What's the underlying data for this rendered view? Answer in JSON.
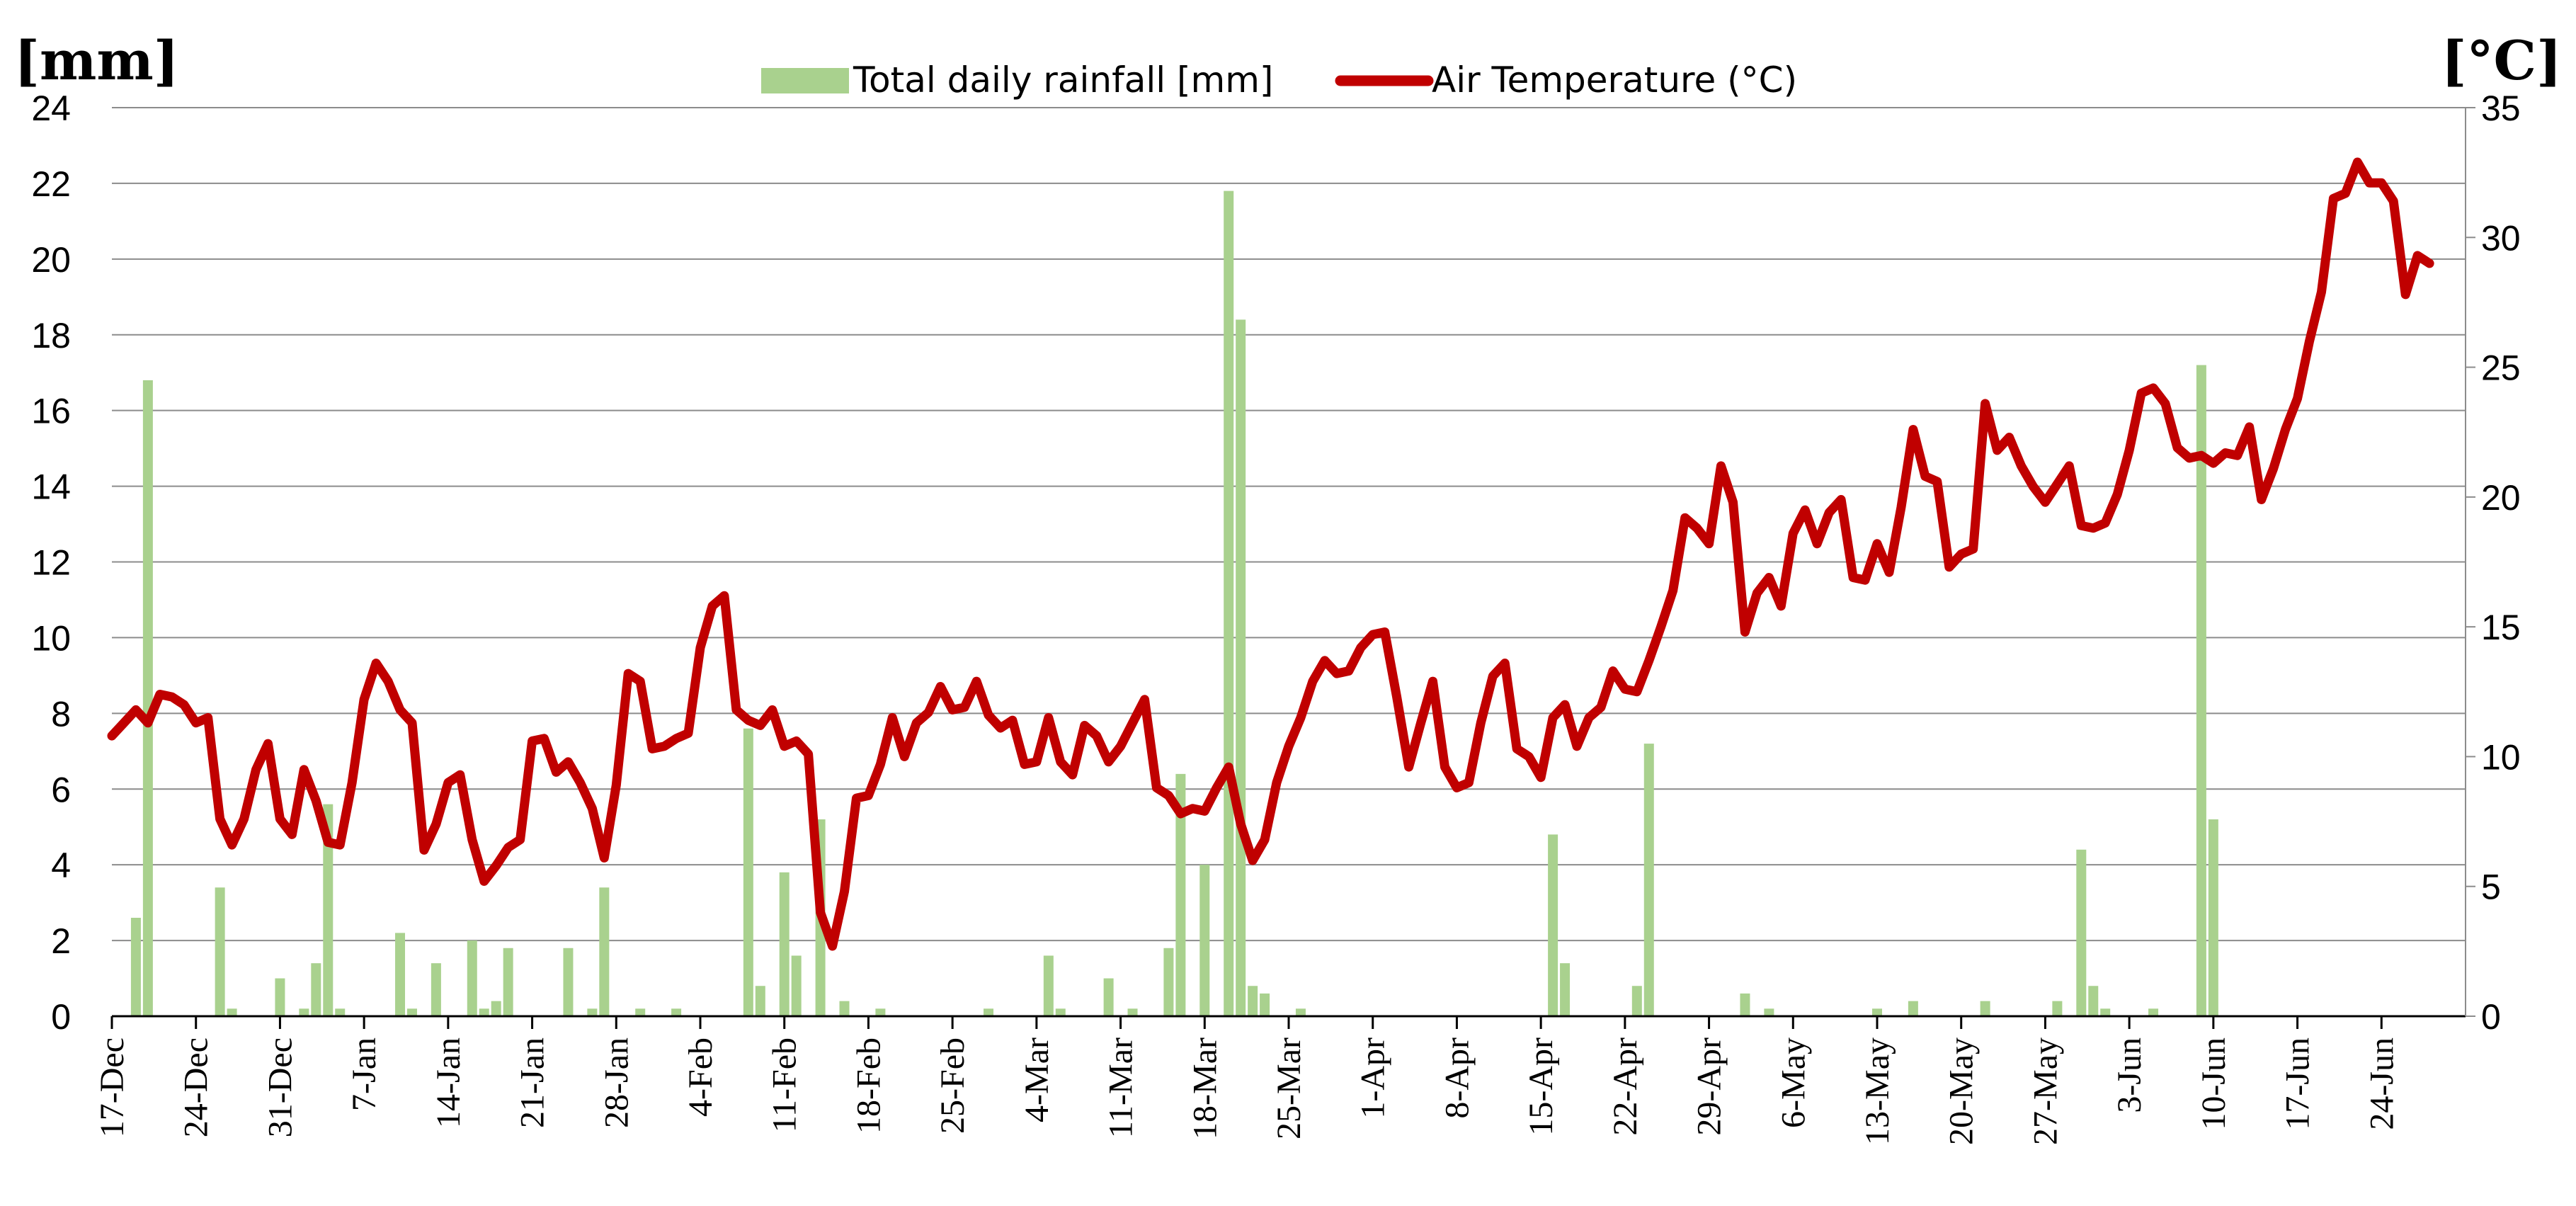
{
  "chart_data": {
    "type": "bar+line",
    "title": "",
    "left_axis": {
      "label": "[mm]",
      "min": 0,
      "max": 24,
      "ticks": [
        0,
        2,
        4,
        6,
        8,
        10,
        12,
        14,
        16,
        18,
        20,
        22,
        24
      ]
    },
    "right_axis": {
      "label": "[°C]",
      "min": 0,
      "max": 35,
      "ticks": [
        0,
        5,
        10,
        15,
        20,
        25,
        30,
        35
      ]
    },
    "x_axis": {
      "days": 197,
      "tick_labels": [
        "17-Dec",
        "24-Dec",
        "31-Dec",
        "7-Jan",
        "14-Jan",
        "21-Jan",
        "28-Jan",
        "4-Feb",
        "11-Feb",
        "18-Feb",
        "25-Feb",
        "4-Mar",
        "11-Mar",
        "18-Mar",
        "25-Mar",
        "1-Apr",
        "8-Apr",
        "15-Apr",
        "22-Apr",
        "29-Apr",
        "6-May",
        "13-May",
        "20-May",
        "27-May",
        "3-Jun",
        "10-Jun",
        "17-Jun",
        "24-Jun"
      ]
    },
    "legend": {
      "position": "top-center"
    },
    "series": [
      {
        "name": "Total daily rainfall [mm]",
        "type": "bar",
        "axis": "left",
        "color": "#a9d18e",
        "points": [
          [
            2,
            2.6
          ],
          [
            3,
            16.8
          ],
          [
            9,
            3.4
          ],
          [
            10,
            0.2
          ],
          [
            14,
            1.0
          ],
          [
            16,
            0.2
          ],
          [
            17,
            1.4
          ],
          [
            18,
            5.6
          ],
          [
            19,
            0.2
          ],
          [
            24,
            2.2
          ],
          [
            25,
            0.2
          ],
          [
            27,
            1.4
          ],
          [
            30,
            2.0
          ],
          [
            31,
            0.2
          ],
          [
            32,
            0.4
          ],
          [
            33,
            1.8
          ],
          [
            38,
            1.8
          ],
          [
            40,
            0.2
          ],
          [
            41,
            3.4
          ],
          [
            44,
            0.2
          ],
          [
            47,
            0.2
          ],
          [
            53,
            7.6
          ],
          [
            54,
            0.8
          ],
          [
            56,
            3.8
          ],
          [
            57,
            1.6
          ],
          [
            59,
            5.2
          ],
          [
            61,
            0.4
          ],
          [
            64,
            0.2
          ],
          [
            73,
            0.2
          ],
          [
            78,
            1.6
          ],
          [
            79,
            0.2
          ],
          [
            83,
            1.0
          ],
          [
            85,
            0.2
          ],
          [
            88,
            1.8
          ],
          [
            89,
            6.4
          ],
          [
            91,
            4.0
          ],
          [
            93,
            21.8
          ],
          [
            94,
            18.4
          ],
          [
            95,
            0.8
          ],
          [
            96,
            0.6
          ],
          [
            99,
            0.2
          ],
          [
            120,
            4.8
          ],
          [
            121,
            1.4
          ],
          [
            127,
            0.8
          ],
          [
            128,
            7.2
          ],
          [
            136,
            0.6
          ],
          [
            138,
            0.2
          ],
          [
            147,
            0.2
          ],
          [
            150,
            0.4
          ],
          [
            156,
            0.4
          ],
          [
            162,
            0.4
          ],
          [
            164,
            4.4
          ],
          [
            165,
            0.8
          ],
          [
            166,
            0.2
          ],
          [
            170,
            0.2
          ],
          [
            174,
            17.2
          ],
          [
            175,
            5.2
          ]
        ]
      },
      {
        "name": "Air Temperature (°C)",
        "type": "line",
        "axis": "right",
        "color": "#c00000",
        "points": [
          [
            0,
            10.8
          ],
          [
            1,
            11.3
          ],
          [
            2,
            11.8
          ],
          [
            3,
            11.3
          ],
          [
            4,
            12.4
          ],
          [
            5,
            12.3
          ],
          [
            6,
            12.0
          ],
          [
            7,
            11.3
          ],
          [
            8,
            11.5
          ],
          [
            9,
            7.6
          ],
          [
            10,
            6.6
          ],
          [
            11,
            7.6
          ],
          [
            12,
            9.5
          ],
          [
            13,
            10.5
          ],
          [
            14,
            7.6
          ],
          [
            15,
            7.0
          ],
          [
            16,
            9.5
          ],
          [
            17,
            8.3
          ],
          [
            18,
            6.7
          ],
          [
            19,
            6.6
          ],
          [
            20,
            9.0
          ],
          [
            21,
            12.2
          ],
          [
            22,
            13.6
          ],
          [
            23,
            12.9
          ],
          [
            24,
            11.8
          ],
          [
            25,
            11.3
          ],
          [
            26,
            6.4
          ],
          [
            27,
            7.4
          ],
          [
            28,
            9.0
          ],
          [
            29,
            9.3
          ],
          [
            30,
            6.8
          ],
          [
            31,
            5.2
          ],
          [
            32,
            5.8
          ],
          [
            33,
            6.5
          ],
          [
            34,
            6.8
          ],
          [
            35,
            10.6
          ],
          [
            36,
            10.7
          ],
          [
            37,
            9.4
          ],
          [
            38,
            9.8
          ],
          [
            39,
            9.0
          ],
          [
            40,
            8.0
          ],
          [
            41,
            6.1
          ],
          [
            42,
            8.9
          ],
          [
            43,
            13.2
          ],
          [
            44,
            12.9
          ],
          [
            45,
            10.3
          ],
          [
            46,
            10.4
          ],
          [
            47,
            10.7
          ],
          [
            48,
            10.9
          ],
          [
            49,
            14.2
          ],
          [
            50,
            15.8
          ],
          [
            51,
            16.2
          ],
          [
            52,
            11.8
          ],
          [
            53,
            11.4
          ],
          [
            54,
            11.2
          ],
          [
            55,
            11.8
          ],
          [
            56,
            10.4
          ],
          [
            57,
            10.6
          ],
          [
            58,
            10.1
          ],
          [
            59,
            4.0
          ],
          [
            60,
            2.7
          ],
          [
            61,
            4.8
          ],
          [
            62,
            8.4
          ],
          [
            63,
            8.5
          ],
          [
            64,
            9.7
          ],
          [
            65,
            11.5
          ],
          [
            66,
            10.0
          ],
          [
            67,
            11.3
          ],
          [
            68,
            11.7
          ],
          [
            69,
            12.7
          ],
          [
            70,
            11.8
          ],
          [
            71,
            11.9
          ],
          [
            72,
            12.9
          ],
          [
            73,
            11.6
          ],
          [
            74,
            11.1
          ],
          [
            75,
            11.4
          ],
          [
            76,
            9.7
          ],
          [
            77,
            9.8
          ],
          [
            78,
            11.5
          ],
          [
            79,
            9.8
          ],
          [
            80,
            9.3
          ],
          [
            81,
            11.2
          ],
          [
            82,
            10.8
          ],
          [
            83,
            9.8
          ],
          [
            84,
            10.4
          ],
          [
            85,
            11.3
          ],
          [
            86,
            12.2
          ],
          [
            87,
            8.8
          ],
          [
            88,
            8.5
          ],
          [
            89,
            7.8
          ],
          [
            90,
            8.0
          ],
          [
            91,
            7.9
          ],
          [
            92,
            8.8
          ],
          [
            93,
            9.6
          ],
          [
            94,
            7.4
          ],
          [
            95,
            6.0
          ],
          [
            96,
            6.8
          ],
          [
            97,
            9.0
          ],
          [
            98,
            10.4
          ],
          [
            99,
            11.5
          ],
          [
            100,
            12.9
          ],
          [
            101,
            13.7
          ],
          [
            102,
            13.2
          ],
          [
            103,
            13.3
          ],
          [
            104,
            14.2
          ],
          [
            105,
            14.7
          ],
          [
            106,
            14.8
          ],
          [
            107,
            12.3
          ],
          [
            108,
            9.6
          ],
          [
            109,
            11.3
          ],
          [
            110,
            12.9
          ],
          [
            111,
            9.6
          ],
          [
            112,
            8.8
          ],
          [
            113,
            9.0
          ],
          [
            114,
            11.3
          ],
          [
            115,
            13.1
          ],
          [
            116,
            13.6
          ],
          [
            117,
            10.3
          ],
          [
            118,
            10.0
          ],
          [
            119,
            9.2
          ],
          [
            120,
            11.5
          ],
          [
            121,
            12.0
          ],
          [
            122,
            10.4
          ],
          [
            123,
            11.5
          ],
          [
            124,
            11.9
          ],
          [
            125,
            13.3
          ],
          [
            126,
            12.6
          ],
          [
            127,
            12.5
          ],
          [
            128,
            13.7
          ],
          [
            129,
            15.0
          ],
          [
            130,
            16.4
          ],
          [
            131,
            19.2
          ],
          [
            132,
            18.8
          ],
          [
            133,
            18.2
          ],
          [
            134,
            21.2
          ],
          [
            135,
            19.8
          ],
          [
            136,
            14.8
          ],
          [
            137,
            16.3
          ],
          [
            138,
            16.9
          ],
          [
            139,
            15.8
          ],
          [
            140,
            18.6
          ],
          [
            141,
            19.5
          ],
          [
            142,
            18.2
          ],
          [
            143,
            19.4
          ],
          [
            144,
            19.9
          ],
          [
            145,
            16.9
          ],
          [
            146,
            16.8
          ],
          [
            147,
            18.2
          ],
          [
            148,
            17.1
          ],
          [
            149,
            19.6
          ],
          [
            150,
            22.6
          ],
          [
            151,
            20.8
          ],
          [
            152,
            20.6
          ],
          [
            153,
            17.3
          ],
          [
            154,
            17.8
          ],
          [
            155,
            18.0
          ],
          [
            156,
            23.6
          ],
          [
            157,
            21.8
          ],
          [
            158,
            22.3
          ],
          [
            159,
            21.2
          ],
          [
            160,
            20.4
          ],
          [
            161,
            19.8
          ],
          [
            162,
            20.5
          ],
          [
            163,
            21.2
          ],
          [
            164,
            18.9
          ],
          [
            165,
            18.8
          ],
          [
            166,
            19.0
          ],
          [
            167,
            20.1
          ],
          [
            168,
            21.8
          ],
          [
            169,
            24.0
          ],
          [
            170,
            24.2
          ],
          [
            171,
            23.6
          ],
          [
            172,
            21.9
          ],
          [
            173,
            21.5
          ],
          [
            174,
            21.6
          ],
          [
            175,
            21.3
          ],
          [
            176,
            21.7
          ],
          [
            177,
            21.6
          ],
          [
            178,
            22.7
          ],
          [
            179,
            19.9
          ],
          [
            180,
            21.1
          ],
          [
            181,
            22.6
          ],
          [
            182,
            23.8
          ],
          [
            183,
            26.0
          ],
          [
            184,
            27.9
          ],
          [
            185,
            31.5
          ],
          [
            186,
            31.7
          ],
          [
            187,
            32.9
          ],
          [
            188,
            32.1
          ],
          [
            189,
            32.1
          ],
          [
            190,
            31.4
          ],
          [
            191,
            27.8
          ],
          [
            192,
            29.3
          ],
          [
            193,
            29.0
          ]
        ]
      }
    ]
  }
}
